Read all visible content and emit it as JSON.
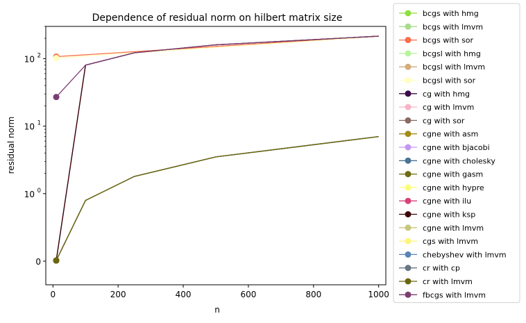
{
  "chart_data": {
    "type": "line",
    "title": "Dependence of residual norm on hilbert matrix size",
    "xlabel": "n",
    "ylabel": "residual norm",
    "xlim": [
      -22,
      1022
    ],
    "ylim": [
      -0.35,
      300
    ],
    "yscale": "symlog",
    "linthresh": 1,
    "grid": false,
    "legend_position": "outside-right",
    "x_ticks": [
      0,
      200,
      400,
      600,
      800,
      1000
    ],
    "x_tick_labels": [
      "0",
      "200",
      "400",
      "600",
      "800",
      "1000"
    ],
    "y_ticks": [
      {
        "value": 0,
        "base": "0",
        "exp": ""
      },
      {
        "value": 1,
        "base": "10",
        "exp": "0"
      },
      {
        "value": 10,
        "base": "10",
        "exp": "1"
      },
      {
        "value": 100,
        "base": "10",
        "exp": "2"
      }
    ],
    "series": [
      {
        "name": "bcgs with hmg",
        "color": "#8fdf3f",
        "x": [
          10,
          100,
          250,
          500,
          1000
        ],
        "y": [
          0.01,
          0.9,
          1.8,
          3.5,
          7
        ]
      },
      {
        "name": "bcgs with lmvm",
        "color": "#a8dc8c",
        "x": [
          10,
          100,
          250,
          500,
          1000
        ],
        "y": [
          0.01,
          0.9,
          1.8,
          3.5,
          7
        ]
      },
      {
        "name": "bcgs with sor",
        "color": "#fa6e4b",
        "x": [
          10,
          1000
        ],
        "y": [
          107,
          215
        ]
      },
      {
        "name": "bcgsl with hmg",
        "color": "#b8f49c",
        "x": [
          10,
          100,
          250,
          500,
          1000
        ],
        "y": [
          0.01,
          0.9,
          1.8,
          3.5,
          7
        ]
      },
      {
        "name": "bcgsl with lmvm",
        "color": "#d4ab7a",
        "x": [
          10,
          100,
          250,
          500,
          1000
        ],
        "y": [
          0.01,
          0.9,
          1.8,
          3.5,
          7
        ]
      },
      {
        "name": "bcgsl with sor",
        "color": "#ffffc0",
        "x": [
          10,
          1000
        ],
        "y": [
          102,
          212
        ]
      },
      {
        "name": "cg with hmg",
        "color": "#3c0a4a",
        "x": [
          10,
          100,
          250,
          500,
          1000
        ],
        "y": [
          0.01,
          80,
          122,
          160,
          215
        ]
      },
      {
        "name": "cg with lmvm",
        "color": "#f9b4c8",
        "x": [
          10,
          100,
          250,
          500,
          1000
        ],
        "y": [
          0.01,
          0.9,
          1.8,
          3.5,
          7
        ]
      },
      {
        "name": "cg with sor",
        "color": "#8a6a60",
        "x": [
          10,
          100,
          250,
          500,
          1000
        ],
        "y": [
          0.01,
          0.9,
          1.8,
          3.5,
          7
        ]
      },
      {
        "name": "cgne with asm",
        "color": "#a68a14",
        "x": [
          10,
          100,
          250,
          500,
          1000
        ],
        "y": [
          0.01,
          0.9,
          1.8,
          3.5,
          7
        ]
      },
      {
        "name": "cgne with bjacobi",
        "color": "#c297f3",
        "x": [
          10,
          100,
          250,
          500,
          1000
        ],
        "y": [
          0.01,
          0.9,
          1.8,
          3.5,
          7
        ]
      },
      {
        "name": "cgne with cholesky",
        "color": "#4a7394",
        "x": [
          10,
          100,
          250,
          500,
          1000
        ],
        "y": [
          0.01,
          0.9,
          1.8,
          3.5,
          7
        ]
      },
      {
        "name": "cgne with gasm",
        "color": "#6e6a10",
        "x": [
          10,
          100,
          250,
          500,
          1000
        ],
        "y": [
          0.01,
          0.9,
          1.8,
          3.5,
          7
        ]
      },
      {
        "name": "cgne with hypre",
        "color": "#fdfd7a",
        "x": [
          10,
          100,
          250,
          500,
          1000
        ],
        "y": [
          0.01,
          0.9,
          1.8,
          3.5,
          7
        ]
      },
      {
        "name": "cgne with ilu",
        "color": "#d8407a",
        "x": [
          10,
          100,
          250,
          500,
          1000
        ],
        "y": [
          0.01,
          0.9,
          1.8,
          3.5,
          7
        ]
      },
      {
        "name": "cgne with ksp",
        "color": "#3e0608",
        "x": [
          10,
          100,
          250,
          500,
          1000
        ],
        "y": [
          0.01,
          80,
          122,
          160,
          215
        ]
      },
      {
        "name": "cgne with lmvm",
        "color": "#c8c67c",
        "x": [
          10,
          100,
          250,
          500,
          1000
        ],
        "y": [
          0.01,
          0.9,
          1.8,
          3.5,
          7
        ]
      },
      {
        "name": "cgs with lmvm",
        "color": "#fdf47c",
        "x": [
          10,
          100,
          250,
          500,
          1000
        ],
        "y": [
          0.01,
          0.9,
          1.8,
          3.5,
          7
        ]
      },
      {
        "name": "chebyshev with lmvm",
        "color": "#5a84b6",
        "x": [
          10,
          100,
          250,
          500,
          1000
        ],
        "y": [
          0.01,
          0.9,
          1.8,
          3.5,
          7
        ]
      },
      {
        "name": "cr with cp",
        "color": "#667784",
        "x": [
          10,
          100,
          250,
          500,
          1000
        ],
        "y": [
          0.01,
          0.9,
          1.8,
          3.5,
          7
        ]
      },
      {
        "name": "cr with lmvm",
        "color": "#6a660c",
        "x": [
          10,
          100,
          250,
          500,
          1000
        ],
        "y": [
          0.01,
          0.9,
          1.8,
          3.5,
          7
        ]
      },
      {
        "name": "fbcgs with lmvm",
        "color": "#7b3d72",
        "x": [
          10,
          100,
          250,
          500,
          1000
        ],
        "y": [
          27,
          80,
          122,
          160,
          215
        ]
      }
    ]
  }
}
